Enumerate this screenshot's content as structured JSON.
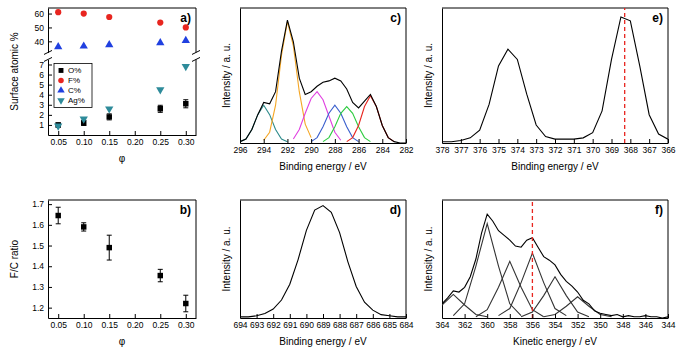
{
  "chart_data": [
    {
      "panel": "a)",
      "type": "scatter",
      "xlabel": "φ",
      "ylabel": "Surface atomic %",
      "x": [
        0.05,
        0.1,
        0.15,
        0.25,
        0.3
      ],
      "xlim": [
        0.03,
        0.32
      ],
      "xticks": [
        {
          "value": 0.05,
          "label": "0.05"
        },
        {
          "value": 0.1,
          "label": "0.10"
        },
        {
          "value": 0.15,
          "label": "0.15"
        },
        {
          "value": 0.2,
          "label": "0.20"
        },
        {
          "value": 0.25,
          "label": "0.25"
        },
        {
          "value": 0.3,
          "label": "0.30"
        }
      ],
      "ylim": [
        0,
        7.5
      ],
      "yticks": [
        1,
        2,
        3,
        4,
        5,
        6,
        7
      ],
      "y2lim": [
        32,
        64
      ],
      "y2ticks": [
        40,
        50,
        60
      ],
      "legend": "upper left",
      "series": [
        {
          "name": "O%",
          "color": "#000000",
          "marker": "square",
          "values": [
            1.0,
            1.2,
            1.8,
            2.6,
            3.1
          ],
          "errors": [
            0.2,
            0.25,
            0.3,
            0.35,
            0.4
          ]
        },
        {
          "name": "F%",
          "color": "#e8251f",
          "marker": "circle",
          "axis": "y2",
          "values": [
            61,
            60,
            57.5,
            53.5,
            50
          ]
        },
        {
          "name": "C%",
          "color": "#2040e0",
          "marker": "triangle-up",
          "axis": "y2",
          "values": [
            36,
            36.5,
            37.5,
            39,
            40.5
          ]
        },
        {
          "name": "Ag%",
          "color": "#2e8b9a",
          "marker": "triangle-down",
          "values": [
            0.9,
            1.6,
            2.6,
            4.5,
            6.8
          ]
        }
      ]
    },
    {
      "panel": "b)",
      "type": "scatter",
      "xlabel": "φ",
      "ylabel": "F/C ratio",
      "x": [
        0.05,
        0.1,
        0.15,
        0.25,
        0.3
      ],
      "values": [
        1.645,
        1.59,
        1.49,
        1.355,
        1.22
      ],
      "errors": [
        0.04,
        0.02,
        0.06,
        0.03,
        0.04
      ],
      "color": "#000000",
      "marker": "square",
      "xlim": [
        0.03,
        0.32
      ],
      "xticks": [
        {
          "value": 0.05,
          "label": "0.05"
        },
        {
          "value": 0.1,
          "label": "0.10"
        },
        {
          "value": 0.15,
          "label": "0.15"
        },
        {
          "value": 0.2,
          "label": "0.20"
        },
        {
          "value": 0.25,
          "label": "0.25"
        },
        {
          "value": 0.3,
          "label": "0.30"
        }
      ],
      "ylim": [
        1.15,
        1.72
      ],
      "yticks": [
        1.2,
        1.3,
        1.4,
        1.5,
        1.6,
        1.7
      ]
    },
    {
      "panel": "c)",
      "type": "line",
      "xlabel": "Binding energy / eV",
      "ylabel": "Intensity / a. u.",
      "xlim": [
        296,
        282
      ],
      "xticks": [
        296,
        294,
        292,
        290,
        288,
        286,
        284,
        282
      ],
      "ylim": [
        0,
        100
      ],
      "tick_labels": "x",
      "series": [
        {
          "color": "#2e8b8b",
          "x": [
            296,
            295.5,
            295,
            294.5,
            294,
            293.5,
            293,
            292.5,
            292
          ],
          "values": [
            1,
            3,
            10,
            21,
            28,
            21,
            10,
            3,
            1
          ]
        },
        {
          "color": "#f5a623",
          "x": [
            294,
            293.5,
            293,
            292.5,
            292,
            291.5,
            291,
            290.5,
            290
          ],
          "values": [
            2,
            8,
            28,
            65,
            90,
            72,
            38,
            14,
            4
          ]
        },
        {
          "color": "#e040e0",
          "x": [
            291.5,
            291,
            290.5,
            290,
            289.5,
            289,
            288.5,
            288,
            287.5
          ],
          "values": [
            3,
            10,
            22,
            33,
            38,
            32,
            20,
            8,
            2
          ]
        },
        {
          "color": "#3a5fcd",
          "x": [
            290,
            289.5,
            289,
            288.5,
            288,
            287.5,
            287,
            286.5,
            286
          ],
          "values": [
            1,
            4,
            12,
            22,
            28,
            22,
            12,
            4,
            1
          ]
        },
        {
          "color": "#2ecc40",
          "x": [
            289,
            288.5,
            288,
            287.5,
            287,
            286.5,
            286,
            285.5,
            285
          ],
          "values": [
            1,
            4,
            12,
            22,
            27,
            22,
            12,
            4,
            1
          ]
        },
        {
          "color": "#e8251f",
          "x": [
            287,
            286.5,
            286,
            285.5,
            285,
            284.5,
            284,
            283.5,
            283
          ],
          "values": [
            1,
            4,
            13,
            27,
            35,
            27,
            13,
            4,
            1
          ]
        },
        {
          "color": "#000000",
          "x": [
            296,
            295.5,
            295,
            294.5,
            294,
            293.5,
            293,
            292.5,
            292,
            291.5,
            291,
            290.5,
            290,
            289.5,
            289,
            288.5,
            288,
            287.5,
            287,
            286.5,
            286,
            285.5,
            285,
            284.5,
            284,
            283.5,
            283,
            282.5,
            282
          ],
          "values": [
            1,
            3,
            10,
            21,
            30,
            29,
            38,
            68,
            91,
            75,
            48,
            36,
            38,
            42,
            45,
            46,
            48,
            46,
            40,
            30,
            26,
            31,
            36,
            27,
            13,
            4,
            1,
            0,
            0
          ]
        }
      ]
    },
    {
      "panel": "d)",
      "type": "line",
      "xlabel": "Binding energy / eV",
      "ylabel": "Intensity / a. u.",
      "xlim": [
        694,
        684
      ],
      "xticks": [
        694,
        693,
        692,
        691,
        690,
        689,
        688,
        687,
        686,
        685,
        684
      ],
      "ylim": [
        0,
        105
      ],
      "tick_labels": "x",
      "color": "#000000",
      "x": [
        694,
        693.5,
        693,
        692.5,
        692,
        691.5,
        691,
        690.5,
        690,
        689.5,
        689,
        688.5,
        688,
        687.5,
        687,
        686.5,
        686,
        685.5,
        685,
        684.5,
        684
      ],
      "values": [
        1,
        1,
        2,
        4,
        8,
        16,
        30,
        52,
        78,
        96,
        100,
        94,
        76,
        50,
        28,
        14,
        7,
        3,
        2,
        1,
        1
      ]
    },
    {
      "panel": "e)",
      "type": "line",
      "xlabel": "Binding energy / eV",
      "ylabel": "Intensity / a. u.",
      "xlim": [
        378,
        366
      ],
      "xticks": [
        378,
        377,
        376,
        375,
        374,
        373,
        372,
        371,
        370,
        369,
        368,
        367,
        366
      ],
      "ylim": [
        0,
        105
      ],
      "tick_labels": "x",
      "color": "#000000",
      "x": [
        378,
        377.5,
        377,
        376.5,
        376,
        375.5,
        375,
        374.5,
        374,
        373.5,
        373,
        372.5,
        372,
        371.5,
        371,
        370.5,
        370,
        369.5,
        369,
        368.5,
        368,
        367.5,
        367,
        366.5,
        366
      ],
      "values": [
        1,
        1,
        2,
        4,
        10,
        30,
        60,
        73,
        65,
        38,
        14,
        5,
        3,
        3,
        3,
        4,
        8,
        25,
        65,
        98,
        95,
        60,
        22,
        7,
        3
      ],
      "vline": {
        "x": 368.3,
        "color": "#e8251f",
        "line_style": "dashed"
      }
    },
    {
      "panel": "f)",
      "type": "line",
      "xlabel": "Kinetic energy / eV",
      "ylabel": "Intensity / a. u.",
      "xlim": [
        364,
        344
      ],
      "xticks": [
        364,
        362,
        360,
        358,
        356,
        354,
        352,
        350,
        348,
        346,
        344
      ],
      "ylim": [
        0,
        100
      ],
      "tick_labels": "x",
      "vline": {
        "x": 356,
        "color": "#e8251f",
        "line_style": "dashed"
      },
      "series": [
        {
          "color": "#333333",
          "x": [
            366,
            365,
            364,
            363,
            362,
            361,
            360
          ],
          "values": [
            1,
            3,
            11,
            20,
            11,
            3,
            1
          ]
        },
        {
          "color": "#333333",
          "x": [
            363,
            362,
            361,
            360,
            359,
            358,
            357
          ],
          "values": [
            2,
            12,
            44,
            80,
            44,
            12,
            2
          ]
        },
        {
          "color": "#333333",
          "x": [
            361,
            360,
            359,
            358,
            357,
            356,
            355
          ],
          "values": [
            1,
            7,
            26,
            48,
            26,
            7,
            1
          ]
        },
        {
          "color": "#333333",
          "x": [
            359,
            358,
            357,
            356,
            355,
            354,
            353
          ],
          "values": [
            2,
            8,
            30,
            55,
            30,
            8,
            2
          ]
        },
        {
          "color": "#333333",
          "x": [
            357,
            356,
            355,
            354,
            353,
            352,
            351
          ],
          "values": [
            1,
            5,
            19,
            35,
            19,
            5,
            1
          ]
        },
        {
          "color": "#333333",
          "x": [
            355,
            354,
            353,
            352,
            351,
            350,
            349
          ],
          "values": [
            1,
            3,
            10,
            18,
            10,
            3,
            1
          ]
        },
        {
          "color": "#000000",
          "x": [
            364,
            363.5,
            363,
            362.5,
            362,
            361.5,
            361,
            360.5,
            360,
            359.5,
            359,
            358.5,
            358,
            357.5,
            357,
            356.5,
            356,
            355.5,
            355,
            354.5,
            354,
            353.5,
            353,
            352.5,
            352,
            351.5,
            351,
            350.5,
            350,
            349.5,
            349,
            348.5,
            348,
            347.5,
            347,
            346.5,
            346,
            345.5,
            345,
            344.5,
            344
          ],
          "values": [
            12,
            17,
            23,
            22,
            26,
            35,
            50,
            72,
            88,
            82,
            74,
            70,
            66,
            61,
            60,
            66,
            68,
            60,
            52,
            49,
            45,
            37,
            31,
            27,
            22,
            15,
            12,
            6,
            4,
            3,
            2,
            3,
            1,
            2,
            1,
            1,
            2,
            1,
            1,
            0,
            1
          ]
        }
      ]
    }
  ]
}
